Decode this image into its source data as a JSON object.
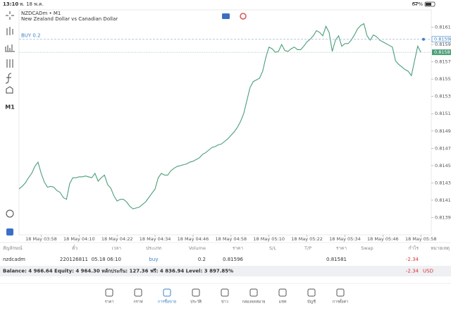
{
  "status_bar": {
    "time": "13:10",
    "date": "พ. 18 พ.ค.",
    "battery": "67%"
  },
  "toolbar": {
    "timeframe": "M1"
  },
  "chart_data": {
    "type": "line",
    "symbol": "NZDCADm • M1",
    "description": "New Zealand Dollar vs Canadian Dollar",
    "color": "#4a9e78",
    "categories": [
      null,
      null,
      null,
      null,
      null,
      null,
      null,
      "18 May 03:58",
      null,
      null,
      null,
      null,
      null,
      null,
      null,
      null,
      null,
      null,
      null,
      "18 May 04:10",
      null,
      null,
      null,
      null,
      null,
      null,
      null,
      null,
      null,
      null,
      null,
      "18 May 04:22",
      null,
      null,
      null,
      null,
      null,
      null,
      null,
      null,
      null,
      null,
      null,
      "18 May 04:34",
      null,
      null,
      null,
      null,
      null,
      null,
      null,
      null,
      null,
      null,
      null,
      "18 May 04:46",
      null,
      null,
      null,
      null,
      null,
      null,
      null,
      null,
      null,
      null,
      null,
      "18 May 04:58",
      null,
      null,
      null,
      null,
      null,
      null,
      null,
      null,
      null,
      null,
      null,
      "18 May 05:10",
      null,
      null,
      null,
      null,
      null,
      null,
      null,
      null,
      null,
      null,
      null,
      "18 May 05:22",
      null,
      null,
      null,
      null,
      null,
      null,
      null,
      null,
      null,
      null,
      null,
      "18 May 05:34",
      null,
      null,
      null,
      null,
      null,
      null,
      null,
      null,
      null,
      null,
      null,
      "18 May 05:46",
      null,
      null,
      null,
      null,
      null,
      null,
      null,
      null,
      null,
      null,
      null,
      "18 May 05:58"
    ],
    "values": [
      0.81423,
      0.81426,
      0.8143,
      0.81436,
      0.81441,
      0.81449,
      0.81454,
      0.81441,
      0.81431,
      0.81425,
      0.81426,
      0.81425,
      0.81421,
      0.81419,
      0.81413,
      0.81411,
      0.81429,
      0.81436,
      0.81436,
      0.81437,
      0.81437,
      0.81438,
      0.81437,
      0.81436,
      0.81441,
      0.81432,
      0.81436,
      0.81439,
      0.81428,
      0.81424,
      0.81415,
      0.81409,
      0.81411,
      0.81411,
      0.81408,
      0.81403,
      0.814,
      0.81401,
      0.81402,
      0.81405,
      0.81408,
      0.81413,
      0.81418,
      0.81423,
      0.81436,
      0.81441,
      0.81439,
      0.81439,
      0.81444,
      0.81447,
      0.81449,
      0.8145,
      0.81451,
      0.81452,
      0.81454,
      0.81455,
      0.81457,
      0.81459,
      0.81463,
      0.81465,
      0.81468,
      0.81471,
      0.81472,
      0.81474,
      0.81475,
      0.81478,
      0.81481,
      0.81485,
      0.81489,
      0.81494,
      0.81501,
      0.8151,
      0.81525,
      0.8154,
      0.81547,
      0.81549,
      0.81551,
      0.81559,
      0.81575,
      0.81587,
      0.81585,
      0.81581,
      0.81582,
      0.8159,
      0.81583,
      0.81582,
      0.81585,
      0.81587,
      0.81584,
      0.81584,
      0.81588,
      0.81593,
      0.81596,
      0.816,
      0.81606,
      0.81604,
      0.816,
      0.81611,
      0.81604,
      0.81582,
      0.81595,
      0.816,
      0.81588,
      0.81591,
      0.81591,
      0.81595,
      0.81601,
      0.81608,
      0.81612,
      0.81614,
      0.816,
      0.81595,
      0.81601,
      0.81599,
      0.81595,
      0.81593,
      0.81591,
      0.81589,
      0.81587,
      0.81571,
      0.81567,
      0.81564,
      0.81561,
      0.81559,
      0.81554,
      0.81571,
      0.81588,
      0.81581
    ],
    "ylim": [
      0.8137,
      0.8163
    ],
    "yticks": [
      {
        "value": 0.8139,
        "label": "0.81390"
      },
      {
        "value": 0.8141,
        "label": "0.81410"
      },
      {
        "value": 0.8143,
        "label": "0.81430"
      },
      {
        "value": 0.8145,
        "label": "0.81450"
      },
      {
        "value": 0.8147,
        "label": "0.81470"
      },
      {
        "value": 0.8149,
        "label": "0.81490"
      },
      {
        "value": 0.8151,
        "label": "0.81510"
      },
      {
        "value": 0.8153,
        "label": "0.81530"
      },
      {
        "value": 0.8155,
        "label": "0.81550"
      },
      {
        "value": 0.8157,
        "label": "0.81570"
      },
      {
        "value": 0.8159,
        "label": "0.81590"
      },
      {
        "value": 0.8161,
        "label": "0.81610"
      }
    ],
    "grid": false,
    "position_label": "BUY 0.2",
    "position_price": 0.81596,
    "position_color": "#3b82c4",
    "bid_price": 0.81581,
    "bid_color": "#4a9e78"
  },
  "table": {
    "headers": [
      "สัญลักษณ์",
      "ตั๋ว",
      "เวลา",
      "ประเภท",
      "Volume",
      "ราคา",
      "S/L",
      "T/P",
      "ราคา",
      "Swap",
      "กำไร",
      "หมายเหตุ"
    ],
    "rows": [
      [
        "nzdcadm",
        "220126811",
        "05.18 06:10",
        "buy",
        "0.2",
        "0.81596",
        null,
        null,
        "0.81581",
        null,
        "-2.34",
        null
      ]
    ]
  },
  "summary": {
    "text": "Balance: 4 966.64 Equity: 4 964.30 หลักประกัน: 127.36 ฟรี: 4 836.94 Level: 3 897.85%",
    "profit": "-2.34",
    "currency": "USD"
  },
  "nav": [
    "ราคา",
    "กราฟ",
    "การซื้อขาย",
    "ประวัติ",
    "ข่าว",
    "กล่องจดหมาย",
    "แชท",
    "บัญชี",
    "การตั้งค่า"
  ]
}
